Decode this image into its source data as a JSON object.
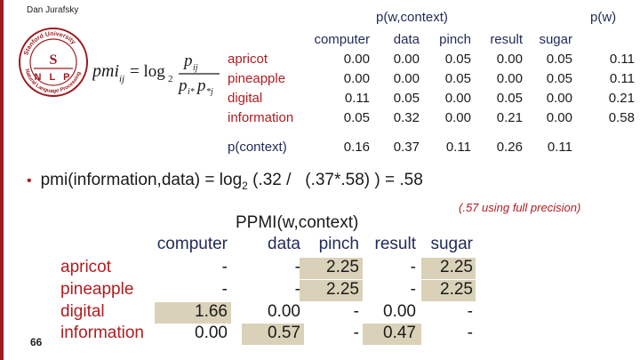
{
  "header": {
    "author": "Dan Jurafsky"
  },
  "logo": {
    "ring_text": "Stanford University Natural Language Processing",
    "center_letter": "S",
    "letters": [
      "N",
      "L",
      "P"
    ]
  },
  "formula": {
    "lhs": "pmi",
    "sub_lhs": "ij",
    "eq": "= log",
    "sub_log": "2",
    "num": "p",
    "num_sub": "ij",
    "den": "p",
    "den_sub1": "i*",
    "den_sub2": "*j"
  },
  "table1": {
    "title_joint": "p(w,context)",
    "title_marginal": "p(w)",
    "columns": [
      "computer",
      "data",
      "pinch",
      "result",
      "sugar"
    ],
    "rows": [
      {
        "label": "apricot",
        "values": [
          "0.00",
          "0.00",
          "0.05",
          "0.00",
          "0.05"
        ],
        "pw": "0.11"
      },
      {
        "label": "pineapple",
        "values": [
          "0.00",
          "0.00",
          "0.05",
          "0.00",
          "0.05"
        ],
        "pw": "0.11"
      },
      {
        "label": "digital",
        "values": [
          "0.11",
          "0.05",
          "0.00",
          "0.05",
          "0.00"
        ],
        "pw": "0.21"
      },
      {
        "label": "information",
        "values": [
          "0.05",
          "0.32",
          "0.00",
          "0.21",
          "0.00"
        ],
        "pw": "0.58"
      }
    ],
    "pcontext_label": "p(context)",
    "pcontext_values": [
      "0.16",
      "0.37",
      "0.11",
      "0.26",
      "0.11"
    ]
  },
  "bullet": {
    "prefix": "pmi(information,data) = log",
    "sub": "2",
    "suffix": " (.32 /   (.37*.58) ) = .58"
  },
  "note": "(.57 using full precision)",
  "table2": {
    "title": "PPMI(w,context)",
    "columns": [
      "computer",
      "data",
      "pinch",
      "result",
      "sugar"
    ],
    "rows": [
      {
        "label": "apricot",
        "values": [
          "-",
          "-",
          "2.25",
          "-",
          "2.25"
        ]
      },
      {
        "label": "pineapple",
        "values": [
          "-",
          "-",
          "2.25",
          "-",
          "2.25"
        ]
      },
      {
        "label": "digital",
        "values": [
          "1.66",
          "0.00",
          "-",
          "0.00",
          "-"
        ]
      },
      {
        "label": "information",
        "values": [
          "0.00",
          "0.57",
          "-",
          "0.47",
          "-"
        ]
      }
    ]
  },
  "page_number": "66"
}
